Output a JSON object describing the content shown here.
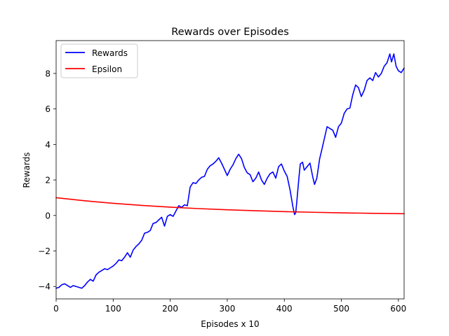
{
  "chart_data": {
    "type": "line",
    "title": "Rewards over Episodes",
    "xlabel": "Episodes x 10",
    "ylabel": "Rewards",
    "xlim": [
      0,
      610
    ],
    "ylim": [
      -4.7,
      9.85
    ],
    "xticks": [
      0,
      100,
      200,
      300,
      400,
      500,
      600
    ],
    "yticks": [
      -4,
      -2,
      0,
      2,
      4,
      6,
      8
    ],
    "grid": false,
    "legend_placement": "top-left",
    "series": [
      {
        "name": "Rewards",
        "color": "#0000ff",
        "points": [
          [
            0,
            -4.1
          ],
          [
            5,
            -4.05
          ],
          [
            10,
            -3.9
          ],
          [
            15,
            -3.85
          ],
          [
            20,
            -3.95
          ],
          [
            25,
            -4.05
          ],
          [
            30,
            -3.95
          ],
          [
            35,
            -4.0
          ],
          [
            40,
            -4.05
          ],
          [
            45,
            -4.1
          ],
          [
            50,
            -3.95
          ],
          [
            55,
            -3.75
          ],
          [
            60,
            -3.6
          ],
          [
            65,
            -3.7
          ],
          [
            70,
            -3.35
          ],
          [
            75,
            -3.2
          ],
          [
            80,
            -3.1
          ],
          [
            85,
            -3.0
          ],
          [
            90,
            -3.05
          ],
          [
            95,
            -2.95
          ],
          [
            100,
            -2.85
          ],
          [
            105,
            -2.7
          ],
          [
            110,
            -2.5
          ],
          [
            115,
            -2.55
          ],
          [
            120,
            -2.35
          ],
          [
            125,
            -2.1
          ],
          [
            130,
            -2.35
          ],
          [
            135,
            -1.95
          ],
          [
            140,
            -1.75
          ],
          [
            145,
            -1.6
          ],
          [
            150,
            -1.4
          ],
          [
            155,
            -1.0
          ],
          [
            160,
            -0.95
          ],
          [
            165,
            -0.85
          ],
          [
            170,
            -0.45
          ],
          [
            175,
            -0.4
          ],
          [
            180,
            -0.25
          ],
          [
            185,
            -0.1
          ],
          [
            190,
            -0.6
          ],
          [
            195,
            -0.05
          ],
          [
            200,
            0.05
          ],
          [
            205,
            -0.05
          ],
          [
            210,
            0.25
          ],
          [
            215,
            0.55
          ],
          [
            220,
            0.45
          ],
          [
            225,
            0.6
          ],
          [
            230,
            0.55
          ],
          [
            235,
            1.6
          ],
          [
            240,
            1.85
          ],
          [
            245,
            1.8
          ],
          [
            250,
            2.0
          ],
          [
            255,
            2.15
          ],
          [
            260,
            2.2
          ],
          [
            265,
            2.6
          ],
          [
            270,
            2.8
          ],
          [
            275,
            2.9
          ],
          [
            280,
            3.05
          ],
          [
            285,
            3.25
          ],
          [
            290,
            2.95
          ],
          [
            295,
            2.6
          ],
          [
            300,
            2.25
          ],
          [
            305,
            2.6
          ],
          [
            310,
            2.85
          ],
          [
            315,
            3.2
          ],
          [
            320,
            3.45
          ],
          [
            325,
            3.2
          ],
          [
            330,
            2.7
          ],
          [
            335,
            2.4
          ],
          [
            340,
            2.3
          ],
          [
            345,
            1.9
          ],
          [
            350,
            2.1
          ],
          [
            355,
            2.45
          ],
          [
            360,
            2.0
          ],
          [
            365,
            1.75
          ],
          [
            370,
            2.1
          ],
          [
            375,
            2.35
          ],
          [
            380,
            2.45
          ],
          [
            385,
            2.1
          ],
          [
            390,
            2.75
          ],
          [
            395,
            2.9
          ],
          [
            400,
            2.5
          ],
          [
            405,
            2.2
          ],
          [
            410,
            1.45
          ],
          [
            415,
            0.5
          ],
          [
            418,
            0.05
          ],
          [
            420,
            0.15
          ],
          [
            422,
            0.8
          ],
          [
            425,
            1.9
          ],
          [
            428,
            2.9
          ],
          [
            432,
            3.0
          ],
          [
            435,
            2.55
          ],
          [
            440,
            2.75
          ],
          [
            445,
            2.95
          ],
          [
            450,
            2.15
          ],
          [
            453,
            1.75
          ],
          [
            457,
            2.1
          ],
          [
            462,
            3.2
          ],
          [
            465,
            3.6
          ],
          [
            470,
            4.3
          ],
          [
            475,
            5.0
          ],
          [
            480,
            4.9
          ],
          [
            485,
            4.8
          ],
          [
            490,
            4.4
          ],
          [
            495,
            5.0
          ],
          [
            500,
            5.2
          ],
          [
            505,
            5.75
          ],
          [
            510,
            6.0
          ],
          [
            515,
            6.05
          ],
          [
            520,
            6.8
          ],
          [
            525,
            7.35
          ],
          [
            530,
            7.2
          ],
          [
            535,
            6.7
          ],
          [
            540,
            7.05
          ],
          [
            545,
            7.6
          ],
          [
            550,
            7.75
          ],
          [
            555,
            7.6
          ],
          [
            560,
            8.05
          ],
          [
            565,
            7.8
          ],
          [
            570,
            8.0
          ],
          [
            575,
            8.4
          ],
          [
            580,
            8.6
          ],
          [
            585,
            9.1
          ],
          [
            588,
            8.65
          ],
          [
            592,
            9.1
          ],
          [
            596,
            8.4
          ],
          [
            600,
            8.15
          ],
          [
            605,
            8.05
          ],
          [
            610,
            8.3
          ]
        ]
      },
      {
        "name": "Epsilon",
        "color": "#ff0000",
        "decay_per_episode": 0.9962,
        "points": [
          [
            0,
            1.0
          ],
          [
            50,
            0.827
          ],
          [
            100,
            0.684
          ],
          [
            150,
            0.565
          ],
          [
            200,
            0.467
          ],
          [
            250,
            0.386
          ],
          [
            300,
            0.319
          ],
          [
            350,
            0.264
          ],
          [
            400,
            0.218
          ],
          [
            450,
            0.18
          ],
          [
            500,
            0.149
          ],
          [
            550,
            0.123
          ],
          [
            610,
            0.098
          ]
        ]
      }
    ]
  }
}
